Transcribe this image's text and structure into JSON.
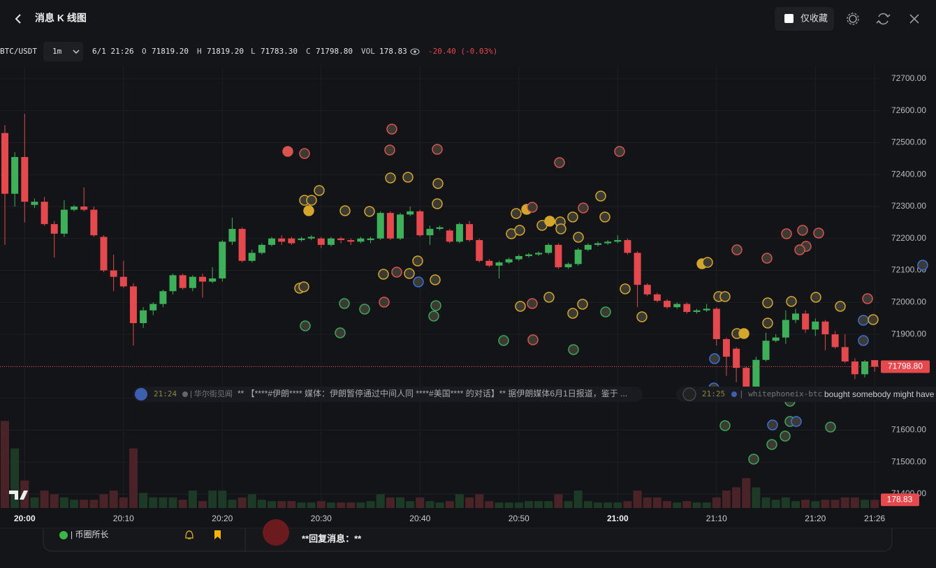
{
  "header": {
    "title": "消息 K 线图",
    "favorites": "仅收藏"
  },
  "toolbar": {
    "symbol": "BTC/USDT",
    "interval": "1m",
    "time": "6/1 21:26",
    "ohlc": [
      {
        "key": "O",
        "value": "71819.20"
      },
      {
        "key": "H",
        "value": "71819.20"
      },
      {
        "key": "L",
        "value": "71783.30"
      },
      {
        "key": "C",
        "value": "71798.80"
      },
      {
        "key": "VOL",
        "value": "178.83"
      }
    ],
    "change": "-20.40 (-0.03%)"
  },
  "news": [
    {
      "time": "21:24",
      "source": "| 华尔街见闻",
      "text": "** 【****#伊朗**** 媒体：伊朗暂停通过中间人同 ****#美国**** 的对话】** 据伊朗媒体6月1日报道，鉴于 ..."
    },
    {
      "time": "21:25",
      "source": "| whitephoneix-btc",
      "text": "bought somebody might have"
    }
  ],
  "footer": {
    "channel": "| 币圈所长",
    "reply": "**回复消息：**"
  },
  "chart_data": {
    "type": "candlestick",
    "categories": [
      null,
      null,
      "20:00",
      null,
      null,
      null,
      null,
      null,
      null,
      null,
      null,
      null,
      "20:10",
      null,
      null,
      null,
      null,
      null,
      null,
      null,
      null,
      null,
      "20:20",
      null,
      null,
      null,
      null,
      null,
      null,
      null,
      null,
      null,
      "20:30",
      null,
      null,
      null,
      null,
      null,
      null,
      null,
      null,
      null,
      "20:40",
      null,
      null,
      null,
      null,
      null,
      null,
      null,
      null,
      null,
      "20:50",
      null,
      null,
      null,
      null,
      null,
      null,
      null,
      null,
      null,
      "21:00",
      null,
      null,
      null,
      null,
      null,
      null,
      null,
      null,
      null,
      "21:10",
      null,
      null,
      null,
      null,
      null,
      null,
      null,
      null,
      null,
      "21:20",
      null,
      null,
      null,
      null,
      null,
      "21:26"
    ],
    "ohlc": [
      [
        72530,
        72555,
        72180,
        72340
      ],
      [
        72340,
        72470,
        72300,
        72455
      ],
      [
        72455,
        72590,
        72250,
        72315
      ],
      [
        72305,
        72325,
        72295,
        72315
      ],
      [
        72315,
        72330,
        72240,
        72245
      ],
      [
        72245,
        72255,
        72140,
        72215
      ],
      [
        72215,
        72320,
        72205,
        72290
      ],
      [
        72290,
        72305,
        72285,
        72300
      ],
      [
        72300,
        72360,
        72285,
        72290
      ],
      [
        72290,
        72300,
        72205,
        72210
      ],
      [
        72205,
        72210,
        72095,
        72100
      ],
      [
        72100,
        72150,
        72035,
        72080
      ],
      [
        72080,
        72130,
        72045,
        72050
      ],
      [
        72050,
        72060,
        71865,
        71935
      ],
      [
        71935,
        71985,
        71920,
        71975
      ],
      [
        71975,
        72000,
        71960,
        71995
      ],
      [
        71995,
        72040,
        71985,
        72035
      ],
      [
        72035,
        72090,
        72025,
        72085
      ],
      [
        72085,
        72090,
        72040,
        72045
      ],
      [
        72045,
        72085,
        72035,
        72080
      ],
      [
        72080,
        72090,
        72015,
        72065
      ],
      [
        72065,
        72110,
        72060,
        72075
      ],
      [
        72075,
        72195,
        72065,
        72190
      ],
      [
        72190,
        72265,
        72180,
        72230
      ],
      [
        72230,
        72235,
        72125,
        72130
      ],
      [
        72130,
        72165,
        72125,
        72155
      ],
      [
        72155,
        72185,
        72150,
        72180
      ],
      [
        72180,
        72205,
        72175,
        72200
      ],
      [
        72200,
        72210,
        72180,
        72190
      ],
      [
        72200,
        72205,
        72180,
        72185
      ],
      [
        72195,
        72205,
        72190,
        72200
      ],
      [
        72200,
        72210,
        72195,
        72205
      ],
      [
        72200,
        72205,
        72170,
        72180
      ],
      [
        72180,
        72205,
        72175,
        72200
      ],
      [
        72200,
        72205,
        72185,
        72195
      ],
      [
        72195,
        72200,
        72180,
        72190
      ],
      [
        72190,
        72205,
        72185,
        72200
      ],
      [
        72195,
        72205,
        72185,
        72200
      ],
      [
        72200,
        72285,
        72195,
        72280
      ],
      [
        72280,
        72285,
        72195,
        72200
      ],
      [
        72200,
        72280,
        72195,
        72275
      ],
      [
        72275,
        72300,
        72270,
        72285
      ],
      [
        72285,
        72290,
        72205,
        72210
      ],
      [
        72210,
        72240,
        72180,
        72230
      ],
      [
        72230,
        72240,
        72225,
        72235
      ],
      [
        72225,
        72230,
        72185,
        72190
      ],
      [
        72190,
        72250,
        72185,
        72245
      ],
      [
        72245,
        72255,
        72190,
        72195
      ],
      [
        72195,
        72200,
        72125,
        72130
      ],
      [
        72130,
        72135,
        72110,
        72115
      ],
      [
        72115,
        72130,
        72075,
        72125
      ],
      [
        72125,
        72140,
        72120,
        72135
      ],
      [
        72135,
        72150,
        72130,
        72145
      ],
      [
        72145,
        72155,
        72140,
        72150
      ],
      [
        72150,
        72160,
        72145,
        72155
      ],
      [
        72155,
        72185,
        72150,
        72180
      ],
      [
        72180,
        72185,
        72105,
        72110
      ],
      [
        72110,
        72125,
        72105,
        72120
      ],
      [
        72120,
        72170,
        72115,
        72165
      ],
      [
        72165,
        72185,
        72160,
        72180
      ],
      [
        72180,
        72190,
        72175,
        72185
      ],
      [
        72185,
        72195,
        72180,
        72190
      ],
      [
        72190,
        72210,
        72185,
        72195
      ],
      [
        72195,
        72200,
        72150,
        72155
      ],
      [
        72155,
        72160,
        71985,
        72055
      ],
      [
        72055,
        72060,
        72020,
        72025
      ],
      [
        72025,
        72030,
        72000,
        72005
      ],
      [
        72005,
        72010,
        71980,
        71985
      ],
      [
        71985,
        72000,
        71980,
        71995
      ],
      [
        71995,
        72000,
        71965,
        71970
      ],
      [
        71970,
        71980,
        71965,
        71975
      ],
      [
        71975,
        71995,
        71970,
        71980
      ],
      [
        71980,
        71985,
        71865,
        71885
      ],
      [
        71885,
        71890,
        71770,
        71830
      ],
      [
        71855,
        71860,
        71750,
        71795
      ],
      [
        71795,
        71800,
        71700,
        71720
      ],
      [
        71720,
        71830,
        71715,
        71820
      ],
      [
        71820,
        71905,
        71815,
        71880
      ],
      [
        71880,
        71900,
        71875,
        71890
      ],
      [
        71890,
        71975,
        71870,
        71945
      ],
      [
        71945,
        71980,
        71935,
        71965
      ],
      [
        71965,
        71975,
        71905,
        71915
      ],
      [
        71915,
        71950,
        71895,
        71940
      ],
      [
        71940,
        71945,
        71850,
        71900
      ],
      [
        71900,
        71910,
        71855,
        71860
      ],
      [
        71860,
        71900,
        71810,
        71815
      ],
      [
        71815,
        71825,
        71760,
        71775
      ],
      [
        71775,
        71820,
        71765,
        71815
      ],
      [
        71819.2,
        71819.2,
        71783.3,
        71798.8
      ]
    ],
    "volume": [
      1900,
      1300,
      600,
      230,
      380,
      300,
      230,
      180,
      180,
      180,
      300,
      380,
      230,
      1300,
      330,
      230,
      230,
      230,
      180,
      380,
      150,
      380,
      380,
      180,
      230,
      300,
      180,
      150,
      150,
      150,
      120,
      120,
      150,
      120,
      120,
      120,
      120,
      150,
      300,
      230,
      230,
      150,
      230,
      150,
      120,
      150,
      300,
      230,
      300,
      150,
      120,
      120,
      120,
      150,
      150,
      150,
      300,
      150,
      380,
      150,
      120,
      120,
      120,
      150,
      380,
      230,
      230,
      150,
      120,
      150,
      120,
      120,
      230,
      380,
      450,
      650,
      450,
      230,
      180,
      230,
      150,
      180,
      150,
      180,
      180,
      230,
      230,
      180,
      178.83
    ],
    "volume_lim": [
      0,
      3000
    ],
    "ylim": [
      71352,
      72739
    ],
    "yticks": [
      {
        "value": 72700,
        "label": "72700.00"
      },
      {
        "value": 72600,
        "label": "72600.00"
      },
      {
        "value": 72500,
        "label": "72500.00"
      },
      {
        "value": 72400,
        "label": "72400.00"
      },
      {
        "value": 72300,
        "label": "72300.00"
      },
      {
        "value": 72200,
        "label": "72200.00"
      },
      {
        "value": 72100,
        "label": "72100.00"
      },
      {
        "value": 72000,
        "label": "72000.00"
      },
      {
        "value": 71900,
        "label": "71900.00"
      },
      {
        "value": 71800,
        "label": "71800.00"
      },
      {
        "value": 71700,
        "label": "71700.00"
      },
      {
        "value": 71600,
        "label": "71600.00"
      },
      {
        "value": 71500,
        "label": "71500.00"
      },
      {
        "value": 71400,
        "label": "71400.00"
      }
    ],
    "price_tag": {
      "value": 71798.8,
      "label": "71798.80"
    },
    "grid": true,
    "up_color": "#3fb05a",
    "down_color": "#e5484d",
    "volume_up_color": "#1c3a26",
    "volume_down_color": "#4a2328"
  }
}
